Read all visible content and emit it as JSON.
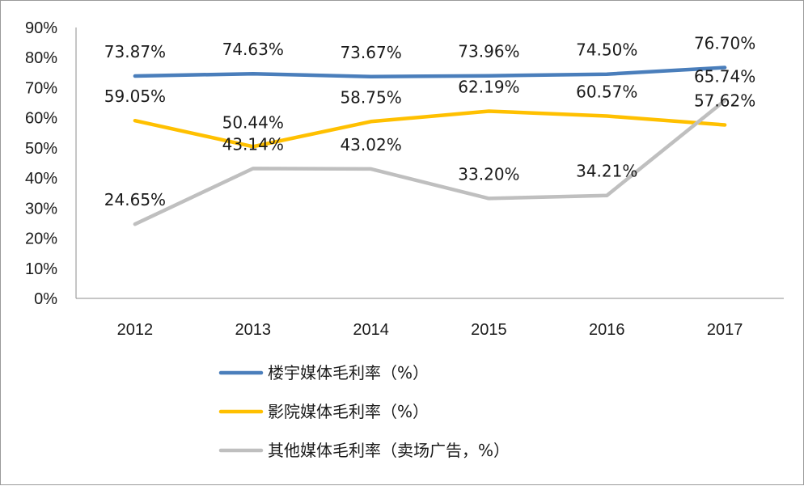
{
  "chart_data": {
    "type": "line",
    "categories": [
      "2012",
      "2013",
      "2014",
      "2015",
      "2016",
      "2017"
    ],
    "y_tick_labels": [
      "0%",
      "10%",
      "20%",
      "30%",
      "40%",
      "50%",
      "60%",
      "70%",
      "80%",
      "90%"
    ],
    "ylim": [
      0,
      90
    ],
    "grid": false,
    "legend_position": "bottom",
    "series": [
      {
        "name": "楼宇媒体毛利率（%）",
        "color": "#4a7ebb",
        "values": [
          73.87,
          74.63,
          73.67,
          73.96,
          74.5,
          76.7
        ],
        "labels": [
          "73.87%",
          "74.63%",
          "73.67%",
          "73.96%",
          "74.50%",
          "76.70%"
        ]
      },
      {
        "name": "影院媒体毛利率（%）",
        "color": "#ffc000",
        "values": [
          59.05,
          50.44,
          58.75,
          62.19,
          60.57,
          57.62
        ],
        "labels": [
          "59.05%",
          "50.44%",
          "58.75%",
          "62.19%",
          "60.57%",
          "57.62%"
        ]
      },
      {
        "name": "其他媒体毛利率（卖场广告，%）",
        "color": "#bfbfbf",
        "values": [
          24.65,
          43.14,
          43.02,
          33.2,
          34.21,
          65.74
        ],
        "labels": [
          "24.65%",
          "43.14%",
          "43.02%",
          "33.20%",
          "34.21%",
          "65.74%"
        ]
      }
    ]
  }
}
